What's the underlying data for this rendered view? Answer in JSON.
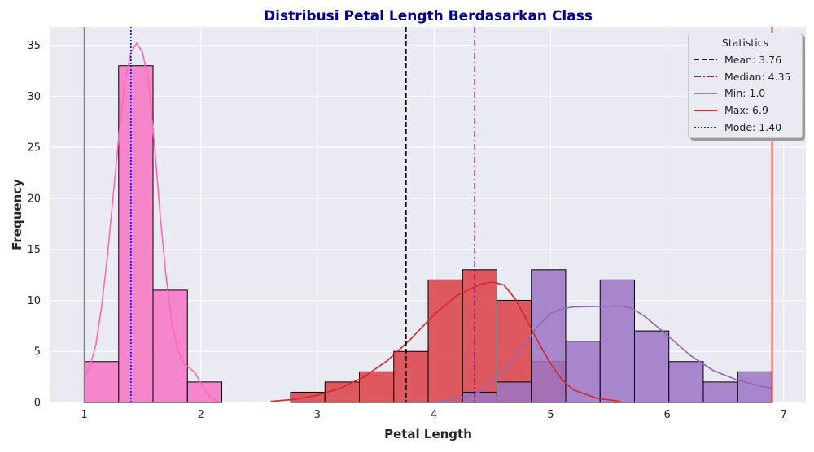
{
  "chart_data": {
    "type": "histogram",
    "title": "Distribusi Petal Length Berdasarkan Class",
    "xlabel": "Petal Length",
    "ylabel": "Frequency",
    "xlim": [
      0.71,
      7.19
    ],
    "ylim": [
      0,
      36.8
    ],
    "x_ticks": [
      "1",
      "2",
      "3",
      "4",
      "5",
      "6",
      "7"
    ],
    "y_ticks": [
      "0",
      "5",
      "10",
      "15",
      "20",
      "25",
      "30",
      "35"
    ],
    "grid": true,
    "bin_width": 0.295,
    "series": [
      {
        "color": "#f774c4",
        "bins": [
          [
            1.0,
            4
          ],
          [
            1.295,
            33
          ],
          [
            1.59,
            11
          ],
          [
            1.885,
            2
          ]
        ],
        "kde_color": "#ff69b4",
        "kde": [
          [
            1.0,
            2.4
          ],
          [
            1.05,
            3.6
          ],
          [
            1.1,
            5.7
          ],
          [
            1.15,
            9.5
          ],
          [
            1.2,
            14.5
          ],
          [
            1.25,
            20.5
          ],
          [
            1.3,
            26.5
          ],
          [
            1.35,
            31.5
          ],
          [
            1.4,
            34.3
          ],
          [
            1.45,
            35.2
          ],
          [
            1.5,
            34.3
          ],
          [
            1.55,
            31.5
          ],
          [
            1.6,
            25.5
          ],
          [
            1.65,
            18.5
          ],
          [
            1.7,
            12.5
          ],
          [
            1.75,
            8.0
          ],
          [
            1.8,
            5.2
          ],
          [
            1.85,
            3.8
          ],
          [
            1.9,
            3.4
          ],
          [
            1.95,
            2.9
          ],
          [
            2.0,
            1.9
          ],
          [
            2.05,
            0.9
          ],
          [
            2.1,
            0.35
          ],
          [
            2.15,
            0.1
          ]
        ]
      },
      {
        "color": "#dc3f45",
        "bins": [
          [
            2.77,
            1
          ],
          [
            3.065,
            2
          ],
          [
            3.36,
            3
          ],
          [
            3.655,
            5
          ],
          [
            3.95,
            12
          ],
          [
            4.245,
            13
          ],
          [
            4.54,
            10
          ],
          [
            4.835,
            4
          ]
        ],
        "kde_color": "#d62728",
        "kde": [
          [
            2.6,
            0.1
          ],
          [
            2.8,
            0.3
          ],
          [
            3.0,
            0.7
          ],
          [
            3.2,
            1.4
          ],
          [
            3.4,
            2.5
          ],
          [
            3.6,
            4.1
          ],
          [
            3.8,
            6.2
          ],
          [
            4.0,
            8.6
          ],
          [
            4.2,
            10.5
          ],
          [
            4.4,
            11.6
          ],
          [
            4.5,
            11.8
          ],
          [
            4.6,
            11.5
          ],
          [
            4.7,
            10.1
          ],
          [
            4.8,
            8.0
          ],
          [
            4.9,
            5.8
          ],
          [
            5.0,
            3.8
          ],
          [
            5.1,
            2.2
          ],
          [
            5.2,
            1.2
          ],
          [
            5.4,
            0.4
          ],
          [
            5.6,
            0.1
          ]
        ]
      },
      {
        "color": "#9b74c4",
        "bins": [
          [
            4.245,
            1
          ],
          [
            4.54,
            2
          ],
          [
            4.835,
            13
          ],
          [
            5.13,
            6
          ],
          [
            5.425,
            12
          ],
          [
            5.72,
            7
          ],
          [
            6.015,
            4
          ],
          [
            6.31,
            2
          ],
          [
            6.605,
            3
          ]
        ],
        "kde_color": "#9467bd",
        "kde": [
          [
            4.0,
            0.05
          ],
          [
            4.2,
            0.3
          ],
          [
            4.4,
            1.1
          ],
          [
            4.6,
            3.0
          ],
          [
            4.8,
            6.0
          ],
          [
            4.9,
            7.6
          ],
          [
            5.0,
            8.7
          ],
          [
            5.1,
            9.2
          ],
          [
            5.2,
            9.35
          ],
          [
            5.4,
            9.4
          ],
          [
            5.6,
            9.45
          ],
          [
            5.7,
            9.2
          ],
          [
            5.8,
            8.5
          ],
          [
            6.0,
            6.6
          ],
          [
            6.2,
            4.6
          ],
          [
            6.4,
            3.1
          ],
          [
            6.6,
            2.2
          ],
          [
            6.8,
            1.6
          ],
          [
            6.9,
            1.4
          ]
        ]
      }
    ],
    "vlines": [
      {
        "x": 3.76,
        "color": "#000000",
        "style": "dashed"
      },
      {
        "x": 4.35,
        "color": "#800080",
        "style": "dashdot"
      },
      {
        "x": 1.0,
        "color": "#808080",
        "style": "solid"
      },
      {
        "x": 6.9,
        "color": "#ff0000",
        "style": "solid"
      },
      {
        "x": 1.4,
        "color": "#0000ff",
        "style": "dotted"
      }
    ],
    "legend": {
      "title": "Statistics",
      "placement": "top-right",
      "entries": [
        {
          "label": "Mean: 3.76",
          "color": "#000000",
          "style": "dashed"
        },
        {
          "label": "Median: 4.35",
          "color": "#800080",
          "style": "dashdot"
        },
        {
          "label": "Min: 1.0",
          "color": "#808080",
          "style": "solid"
        },
        {
          "label": "Max: 6.9",
          "color": "#ff0000",
          "style": "solid"
        },
        {
          "label": "Mode: 1.40",
          "color": "#0000ff",
          "style": "dotted"
        }
      ]
    }
  }
}
